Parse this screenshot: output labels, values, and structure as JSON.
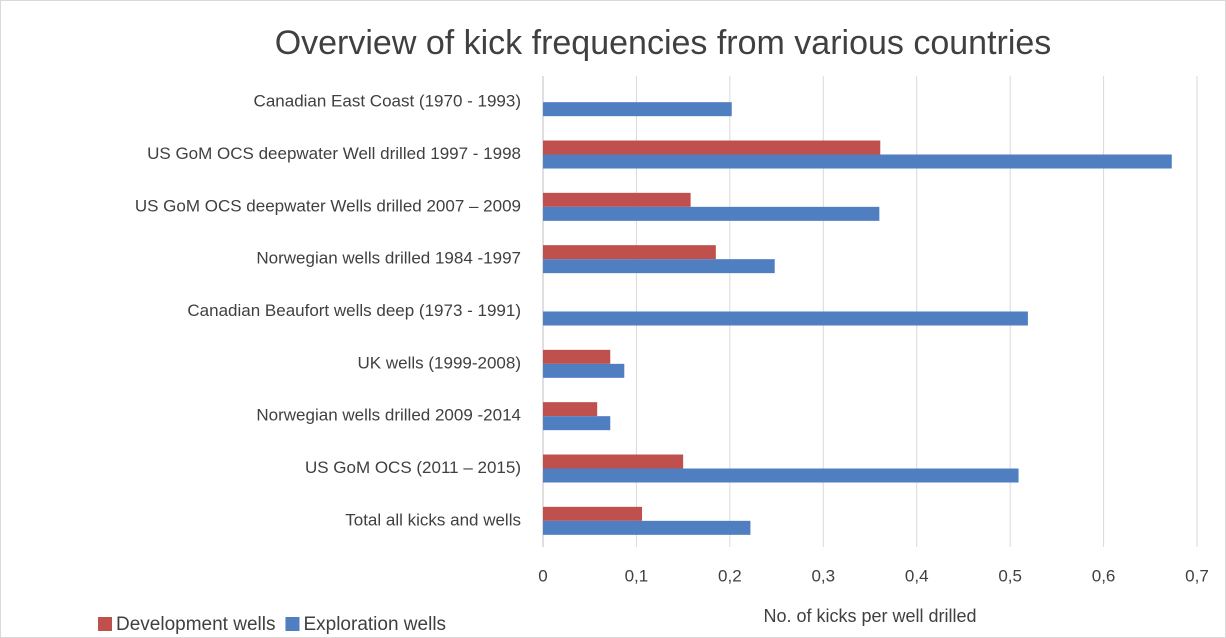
{
  "chart_data": {
    "type": "hbar",
    "title": "Overview of kick frequencies from various countries",
    "x_label": "No. of kicks per well drilled",
    "categories": [
      "Canadian East Coast (1970 - 1993)",
      "US GoM OCS deepwater  Well drilled 1997 - 1998",
      "US GoM OCS deepwater  Wells drilled 2007 – 2009",
      "Norwegian wells drilled 1984 -1997",
      "Canadian Beaufort wells deep (1973 - 1991)",
      "UK wells (1999-2008)",
      "Norwegian wells drilled 2009 -2014",
      "US GoM OCS (2011 – 2015)",
      "Total all kicks and wells"
    ],
    "series": [
      {
        "name": "Development wells",
        "color": "#c0504d",
        "values": [
          null,
          0.361,
          0.158,
          0.185,
          null,
          0.072,
          0.058,
          0.15,
          0.106
        ]
      },
      {
        "name": "Exploration wells",
        "color": "#4f7ec1",
        "values": [
          0.202,
          0.673,
          0.36,
          0.248,
          0.519,
          0.087,
          0.072,
          0.509,
          0.222
        ]
      }
    ],
    "xlim": [
      0,
      0.7
    ],
    "xticks": [
      0,
      {
        "value": 0.1,
        "label": "0,1"
      },
      {
        "value": 0.2,
        "label": "0,2"
      },
      {
        "value": 0.3,
        "label": "0,3"
      },
      {
        "value": 0.4,
        "label": "0,4"
      },
      {
        "value": 0.5,
        "label": "0,5"
      },
      {
        "value": 0.6,
        "label": "0,6"
      },
      {
        "value": 0.7,
        "label": "0,7"
      }
    ],
    "grid": true,
    "legend": "bottom-left"
  }
}
